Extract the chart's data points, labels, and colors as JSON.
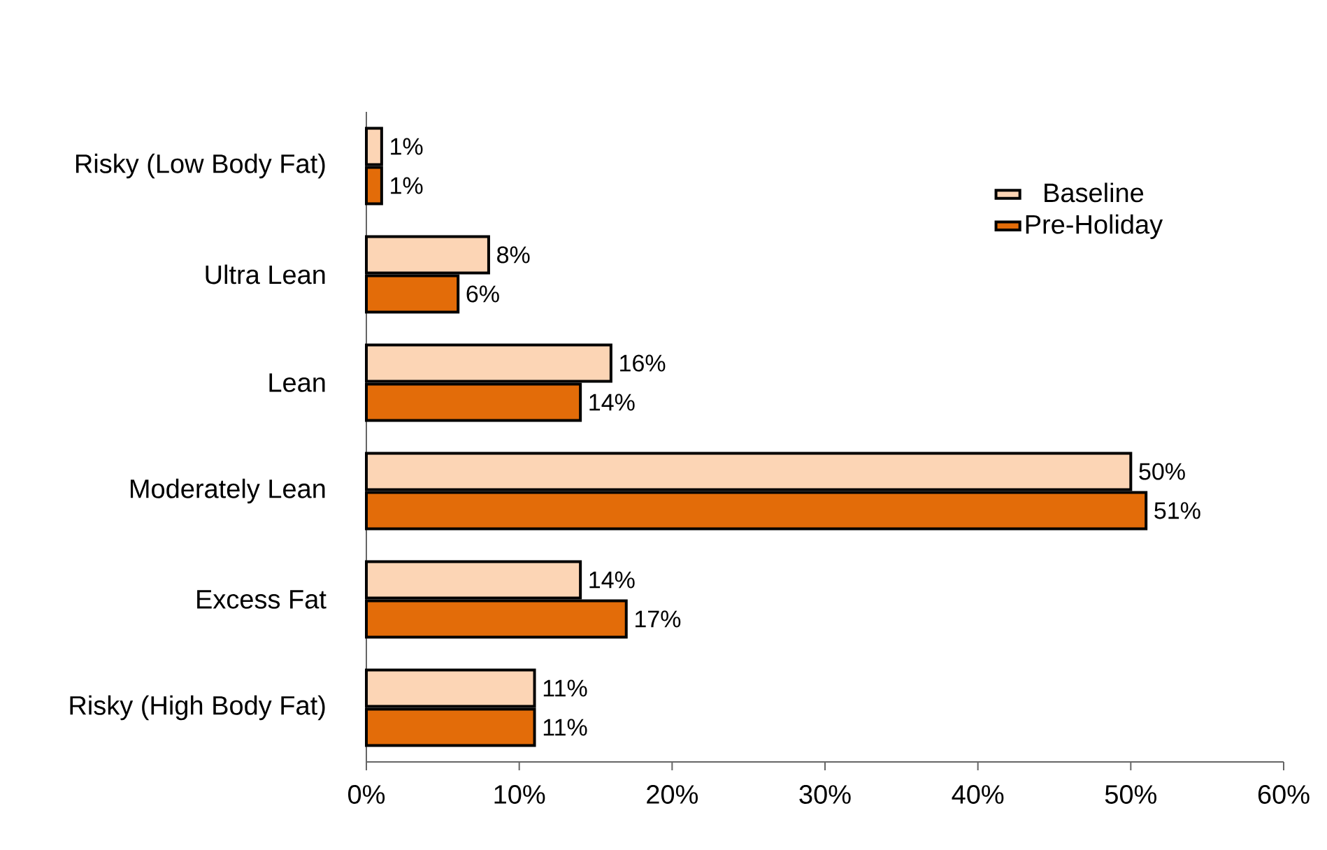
{
  "chart_data": {
    "type": "bar",
    "orientation": "horizontal",
    "categories": [
      "Risky (Low Body Fat)",
      "Ultra Lean",
      "Lean",
      "Moderately Lean",
      "Excess Fat",
      "Risky (High Body Fat)"
    ],
    "series": [
      {
        "name": "Baseline",
        "color": "#fcd5b5",
        "values": [
          1,
          8,
          16,
          50,
          14,
          11
        ],
        "value_labels": [
          "1%",
          "8%",
          "16%",
          "50%",
          "14%",
          "11%"
        ]
      },
      {
        "name": "Pre-Holiday",
        "color": "#e36c09",
        "values": [
          1,
          6,
          14,
          51,
          17,
          11
        ],
        "value_labels": [
          "1%",
          "6%",
          "14%",
          "51%",
          "17%",
          "11%"
        ]
      }
    ],
    "xlim": [
      0,
      60
    ],
    "xticks": [
      {
        "value": 0,
        "label": "0%"
      },
      {
        "value": 10,
        "label": "10%"
      },
      {
        "value": 20,
        "label": "20%"
      },
      {
        "value": 30,
        "label": "30%"
      },
      {
        "value": 40,
        "label": "40%"
      },
      {
        "value": 50,
        "label": "50%"
      },
      {
        "value": 60,
        "label": "60%"
      }
    ],
    "legend": "top right"
  }
}
